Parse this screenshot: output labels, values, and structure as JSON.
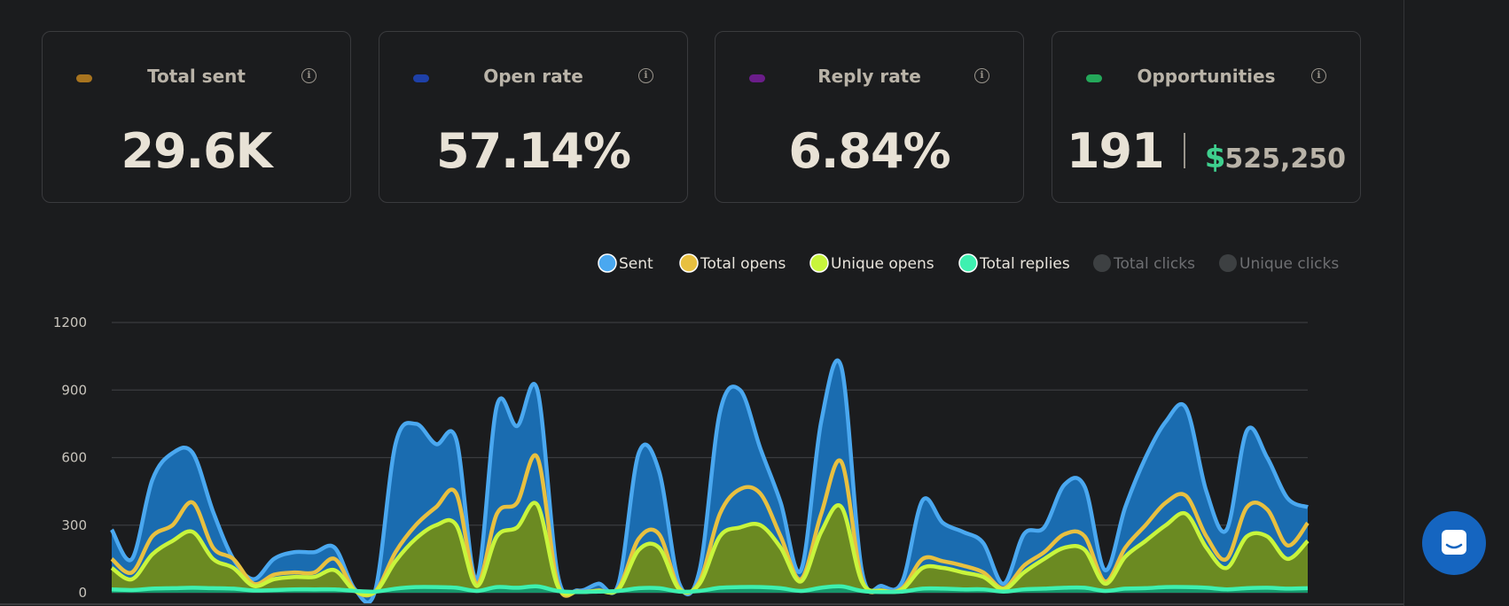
{
  "cards": [
    {
      "title": "Total sent",
      "value": "29.6K",
      "color": "#a8741f"
    },
    {
      "title": "Open rate",
      "value": "57.14%",
      "color": "#1e40a8"
    },
    {
      "title": "Reply rate",
      "value": "6.84%",
      "color": "#6b1d8a"
    },
    {
      "title": "Opportunities",
      "value": "191",
      "currency": "$",
      "amount": "525,250",
      "color": "#24a85a"
    }
  ],
  "chart_data": {
    "type": "area",
    "categories": [
      null,
      null,
      null,
      null,
      null,
      null,
      null,
      null,
      null,
      null,
      null,
      null,
      null,
      null,
      null,
      null,
      null,
      null,
      null,
      null,
      null,
      null,
      null,
      null,
      null,
      null,
      null,
      null,
      null,
      null,
      null,
      null,
      null,
      null,
      null,
      null,
      null,
      null,
      null,
      null,
      null,
      null,
      null,
      null,
      null,
      null,
      null,
      null,
      null,
      null,
      null,
      null,
      null,
      null,
      null,
      null,
      null,
      null,
      null,
      null
    ],
    "ylim": [
      0,
      1200
    ],
    "yticks": [
      0,
      300,
      600,
      900,
      1200
    ],
    "grid": true,
    "series": [
      {
        "name": "Sent",
        "color": "#4aa8f0",
        "fill": "#1a6cb0",
        "values": [
          280,
          150,
          500,
          620,
          620,
          360,
          150,
          60,
          150,
          180,
          180,
          200,
          15,
          10,
          660,
          750,
          660,
          680,
          60,
          830,
          740,
          900,
          80,
          10,
          40,
          40,
          620,
          540,
          40,
          100,
          800,
          900,
          640,
          400,
          100,
          760,
          1000,
          100,
          30,
          50,
          410,
          310,
          270,
          220,
          40,
          260,
          290,
          480,
          470,
          100,
          380,
          600,
          760,
          820,
          450,
          280,
          720,
          600,
          420,
          380
        ]
      },
      {
        "name": "Total opens",
        "color": "#e8c040",
        "fill": null,
        "values": [
          150,
          90,
          250,
          300,
          400,
          200,
          150,
          40,
          80,
          90,
          90,
          150,
          10,
          5,
          180,
          300,
          380,
          440,
          40,
          350,
          400,
          600,
          40,
          5,
          10,
          20,
          240,
          260,
          20,
          50,
          350,
          460,
          440,
          250,
          60,
          350,
          580,
          60,
          10,
          20,
          150,
          140,
          120,
          90,
          20,
          120,
          180,
          260,
          250,
          50,
          200,
          300,
          400,
          430,
          250,
          150,
          380,
          370,
          210,
          310
        ]
      },
      {
        "name": "Unique opens",
        "color": "#c8f53c",
        "fill": "#6b8a22",
        "values": [
          110,
          60,
          170,
          230,
          270,
          150,
          110,
          30,
          60,
          70,
          70,
          100,
          8,
          4,
          140,
          240,
          300,
          300,
          30,
          250,
          290,
          390,
          30,
          4,
          8,
          15,
          190,
          200,
          15,
          40,
          250,
          290,
          300,
          200,
          50,
          270,
          380,
          50,
          8,
          15,
          110,
          110,
          90,
          70,
          15,
          90,
          150,
          200,
          190,
          40,
          160,
          230,
          300,
          350,
          200,
          110,
          250,
          250,
          150,
          230
        ]
      },
      {
        "name": "Total replies",
        "color": "#3ef0b0",
        "fill": "#17946a",
        "values": [
          15,
          12,
          18,
          20,
          22,
          20,
          18,
          10,
          12,
          15,
          15,
          15,
          8,
          5,
          18,
          25,
          25,
          22,
          8,
          25,
          22,
          28,
          8,
          3,
          5,
          8,
          20,
          20,
          5,
          8,
          22,
          25,
          25,
          20,
          8,
          22,
          28,
          8,
          3,
          5,
          18,
          18,
          15,
          15,
          5,
          15,
          18,
          22,
          22,
          8,
          18,
          20,
          25,
          25,
          22,
          15,
          20,
          22,
          18,
          20
        ]
      },
      {
        "name": "Total clicks",
        "color": "#3d4042",
        "hidden": true
      },
      {
        "name": "Unique clicks",
        "color": "#3d4042",
        "hidden": true
      }
    ]
  }
}
